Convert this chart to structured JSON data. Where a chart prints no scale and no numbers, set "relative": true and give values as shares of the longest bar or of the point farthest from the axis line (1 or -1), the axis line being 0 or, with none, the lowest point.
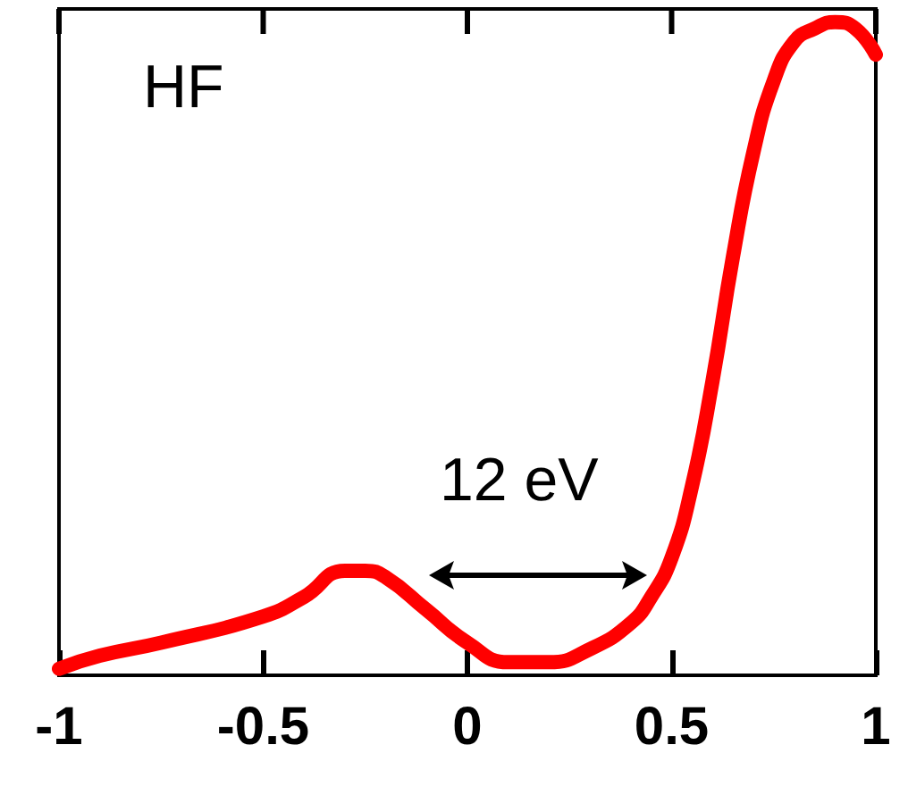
{
  "chart_data": {
    "type": "line",
    "relative": true,
    "x": [
      -1,
      -0.9,
      -0.75,
      -0.5,
      -0.4,
      -0.3,
      -0.25,
      -0.2,
      -0.1,
      0,
      0.1,
      0.2,
      0.3,
      0.4,
      0.45,
      0.5,
      0.55,
      0.6,
      0.65,
      0.7,
      0.75,
      0.8,
      0.85,
      0.9,
      0.95,
      1
    ],
    "series": [
      {
        "color": "#ff0000",
        "values": [
          0.01,
          0.03,
          0.05,
          0.09,
          0.12,
          0.16,
          0.16,
          0.15,
          0.1,
          0.05,
          0.02,
          0.02,
          0.04,
          0.08,
          0.12,
          0.18,
          0.29,
          0.45,
          0.64,
          0.8,
          0.91,
          0.97,
          0.99,
          1,
          0.99,
          0.95
        ]
      }
    ],
    "xlim": [
      -1,
      1
    ],
    "xticks": [
      -1,
      -0.5,
      0,
      0.5,
      1
    ],
    "annotations": [
      "HF",
      "12 eV"
    ],
    "grid": false,
    "line_style": "solid"
  }
}
